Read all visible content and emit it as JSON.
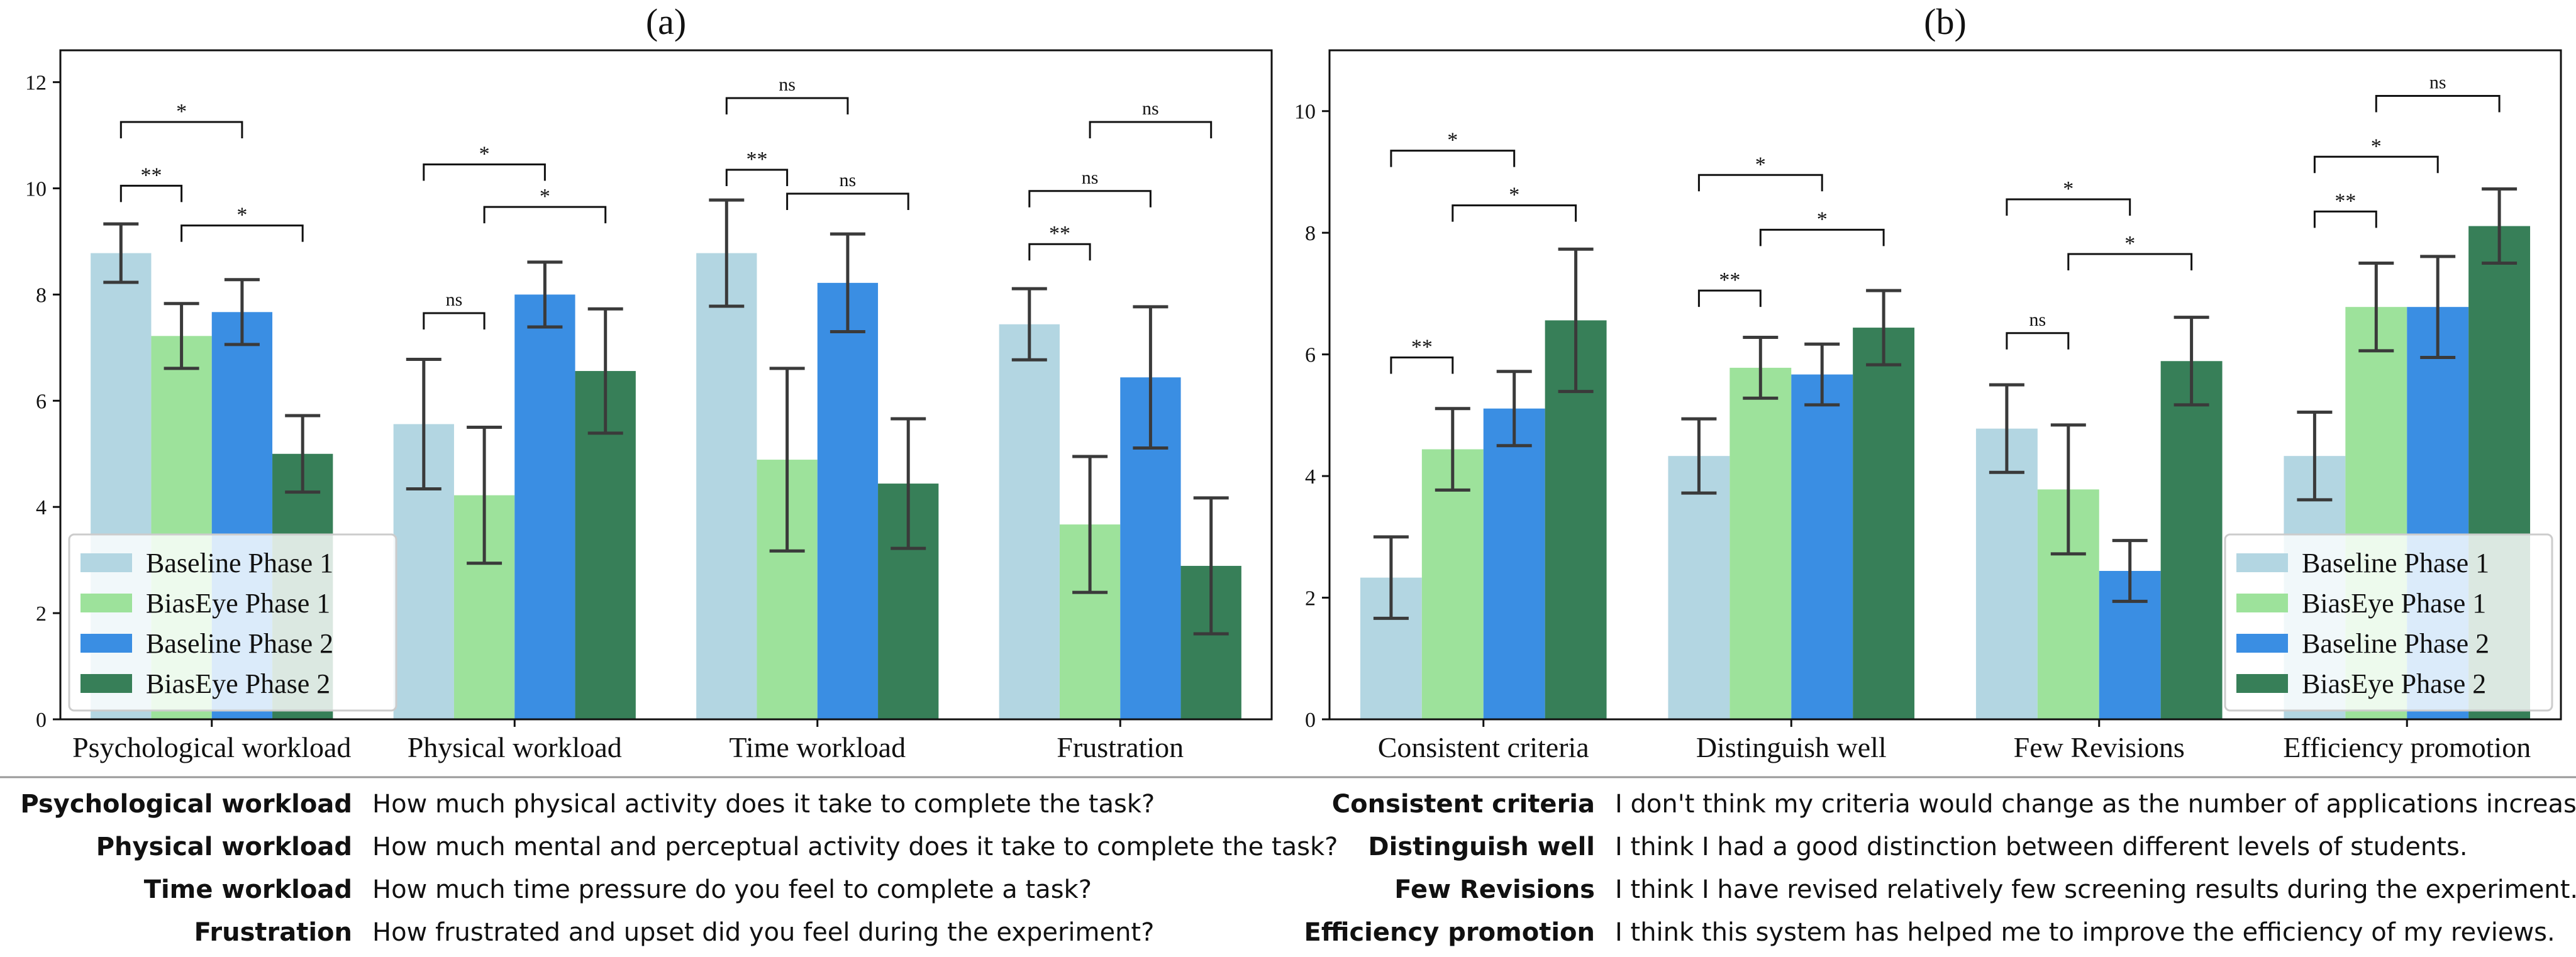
{
  "chart_data": [
    {
      "type": "bar",
      "title": "(a)",
      "categories": [
        "Psychological workload",
        "Physical workload",
        "Time workload",
        "Frustration"
      ],
      "ylim": [
        0,
        12.6
      ],
      "yticks": [
        0,
        2,
        4,
        6,
        8,
        10,
        12
      ],
      "series": [
        {
          "name": "Baseline Phase 1",
          "color": "#b3d6e2",
          "values": [
            8.78,
            5.56,
            8.78,
            7.44
          ],
          "errors": [
            0.55,
            1.22,
            1.0,
            0.67
          ]
        },
        {
          "name": "BiasEye Phase 1",
          "color": "#9de29b",
          "values": [
            7.22,
            4.22,
            4.89,
            3.67
          ],
          "errors": [
            0.61,
            1.28,
            1.72,
            1.28
          ]
        },
        {
          "name": "Baseline Phase 2",
          "color": "#3a8ee3",
          "values": [
            7.67,
            8.0,
            8.22,
            6.44
          ],
          "errors": [
            0.61,
            0.61,
            0.92,
            1.33
          ]
        },
        {
          "name": "BiasEye Phase 2",
          "color": "#377f58",
          "values": [
            5.0,
            6.56,
            4.44,
            2.89
          ],
          "errors": [
            0.72,
            1.17,
            1.22,
            1.28
          ]
        }
      ],
      "significance": [
        {
          "cat": 0,
          "from": 0,
          "to": 1,
          "label": "**",
          "y": 10.05
        },
        {
          "cat": 0,
          "from": 0,
          "to": 2,
          "label": "*",
          "y": 11.25
        },
        {
          "cat": 0,
          "from": 1,
          "to": 3,
          "label": "*",
          "y": 9.3
        },
        {
          "cat": 1,
          "from": 0,
          "to": 1,
          "label": "ns",
          "y": 7.65
        },
        {
          "cat": 1,
          "from": 0,
          "to": 2,
          "label": "*",
          "y": 10.45
        },
        {
          "cat": 1,
          "from": 1,
          "to": 3,
          "label": "*",
          "y": 9.65
        },
        {
          "cat": 2,
          "from": 0,
          "to": 1,
          "label": "**",
          "y": 10.35
        },
        {
          "cat": 2,
          "from": 0,
          "to": 2,
          "label": "ns",
          "y": 11.7
        },
        {
          "cat": 2,
          "from": 1,
          "to": 3,
          "label": "ns",
          "y": 9.9
        },
        {
          "cat": 3,
          "from": 0,
          "to": 1,
          "label": "**",
          "y": 8.95
        },
        {
          "cat": 3,
          "from": 0,
          "to": 2,
          "label": "ns",
          "y": 9.95
        },
        {
          "cat": 3,
          "from": 1,
          "to": 3,
          "label": "ns",
          "y": 11.25
        }
      ],
      "legend_position": "lower-left"
    },
    {
      "type": "bar",
      "title": "(b)",
      "categories": [
        "Consistent criteria",
        "Distinguish well",
        "Few Revisions",
        "Efficiency promotion"
      ],
      "ylim": [
        0,
        11
      ],
      "yticks": [
        0,
        2,
        4,
        6,
        8,
        10
      ],
      "series": [
        {
          "name": "Baseline Phase 1",
          "color": "#b3d6e2",
          "values": [
            2.33,
            4.33,
            4.78,
            4.33
          ],
          "errors": [
            0.67,
            0.61,
            0.72,
            0.72
          ]
        },
        {
          "name": "BiasEye Phase 1",
          "color": "#9de29b",
          "values": [
            4.44,
            5.78,
            3.78,
            6.78
          ],
          "errors": [
            0.67,
            0.5,
            1.06,
            0.72
          ]
        },
        {
          "name": "Baseline Phase 2",
          "color": "#3a8ee3",
          "values": [
            5.11,
            5.67,
            2.44,
            6.78
          ],
          "errors": [
            0.61,
            0.5,
            0.5,
            0.83
          ]
        },
        {
          "name": "BiasEye Phase 2",
          "color": "#377f58",
          "values": [
            6.56,
            6.44,
            5.89,
            8.11
          ],
          "errors": [
            1.17,
            0.61,
            0.72,
            0.61
          ]
        }
      ],
      "significance": [
        {
          "cat": 0,
          "from": 0,
          "to": 1,
          "label": "**",
          "y": 5.95
        },
        {
          "cat": 0,
          "from": 0,
          "to": 2,
          "label": "*",
          "y": 9.35
        },
        {
          "cat": 0,
          "from": 1,
          "to": 3,
          "label": "*",
          "y": 8.45
        },
        {
          "cat": 1,
          "from": 0,
          "to": 1,
          "label": "**",
          "y": 7.05
        },
        {
          "cat": 1,
          "from": 0,
          "to": 2,
          "label": "*",
          "y": 8.95
        },
        {
          "cat": 1,
          "from": 1,
          "to": 3,
          "label": "*",
          "y": 8.05
        },
        {
          "cat": 2,
          "from": 0,
          "to": 1,
          "label": "ns",
          "y": 6.35
        },
        {
          "cat": 2,
          "from": 0,
          "to": 2,
          "label": "*",
          "y": 8.55
        },
        {
          "cat": 2,
          "from": 1,
          "to": 3,
          "label": "*",
          "y": 7.65
        },
        {
          "cat": 3,
          "from": 0,
          "to": 1,
          "label": "**",
          "y": 8.35
        },
        {
          "cat": 3,
          "from": 0,
          "to": 2,
          "label": "*",
          "y": 9.25
        },
        {
          "cat": 3,
          "from": 1,
          "to": 3,
          "label": "ns",
          "y": 10.25
        }
      ],
      "legend_position": "lower-right"
    }
  ],
  "descriptions": {
    "left": [
      {
        "term": "Psychological workload",
        "text": "How much physical activity does it take to complete the task?"
      },
      {
        "term": "Physical workload",
        "text": "How much mental and perceptual activity does it take to complete the task?"
      },
      {
        "term": "Time workload",
        "text": "How much time pressure do you feel to complete a task?"
      },
      {
        "term": "Frustration",
        "text": "How frustrated and upset did you feel during the experiment?"
      }
    ],
    "right": [
      {
        "term": "Consistent criteria",
        "text": "I don't think my criteria would change as the number of applications increases."
      },
      {
        "term": "Distinguish well",
        "text": "I think I had a good distinction between different levels of students."
      },
      {
        "term": "Few Revisions",
        "text": "I think I have revised relatively few screening results during the experiment."
      },
      {
        "term": "Efficiency promotion",
        "text": "I think this system has helped me to improve the efficiency of my reviews."
      }
    ]
  }
}
